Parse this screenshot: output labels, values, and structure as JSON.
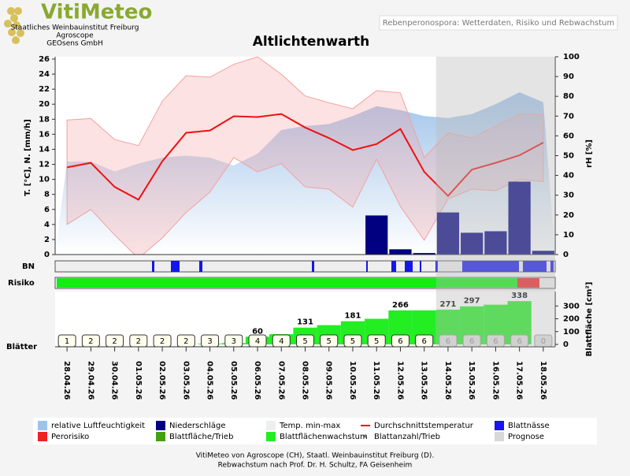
{
  "header": {
    "logo": "VitiMeteo",
    "org": [
      "Staatliches Weinbauinstitut Freiburg",
      "Agroscope",
      "GEOsens GmbH"
    ],
    "subtitle": "Rebenperonospora: Wetterdaten, Risiko und Rebwachstum"
  },
  "chart_data": [
    {
      "type": "weather",
      "title": "Altlichtenwarth",
      "categories": [
        "28.04.26",
        "29.04.26",
        "30.04.26",
        "01.05.26",
        "02.05.26",
        "03.05.26",
        "04.05.26",
        "05.05.26",
        "06.05.26",
        "07.05.26",
        "08.05.26",
        "09.05.26",
        "10.05.26",
        "11.05.26",
        "12.05.26",
        "13.05.26",
        "14.05.26",
        "15.05.26",
        "16.05.26",
        "17.05.26",
        "18.05.26"
      ],
      "forecast_start": "14.05.26",
      "ylabel": "T. [°C], N. [mm/h]",
      "y2label": "rH [%]",
      "ylim": [
        0,
        26
      ],
      "yticks": [
        0,
        2,
        4,
        6,
        8,
        10,
        12,
        14,
        16,
        18,
        20,
        22,
        24,
        26
      ],
      "y2lim": [
        0,
        100
      ],
      "y2ticks": [
        0,
        10,
        20,
        30,
        40,
        50,
        60,
        70,
        80,
        90,
        100
      ],
      "series": [
        {
          "type": "area",
          "axis": "y2",
          "color": "#9cc3ea",
          "values": [
            47,
            47,
            42,
            46,
            49,
            50,
            49,
            45,
            51,
            63,
            65,
            66,
            70,
            75,
            73,
            70,
            69,
            71,
            76,
            82,
            77
          ]
        },
        {
          "type": "band",
          "color": "#f4a0a0",
          "values": [
            17.9,
            18.1,
            15.3,
            14.5,
            20.4,
            23.8,
            23.6,
            25.3,
            26.3,
            24.0,
            21.1,
            20.2,
            19.4,
            21.8,
            21.5,
            12.9,
            16.2,
            15.5,
            17.1,
            18.7,
            18.6
          ],
          "lows": [
            4.0,
            6.0,
            2.6,
            -0.5,
            2.2,
            5.6,
            8.3,
            12.9,
            11.0,
            12.1,
            9.0,
            8.7,
            6.3,
            12.7,
            6.4,
            1.9,
            7.4,
            8.7,
            8.5,
            10.0,
            9.7
          ]
        },
        {
          "type": "bar",
          "color": "#000080",
          "values": [
            0,
            0,
            0,
            0,
            0,
            0,
            0,
            0,
            0,
            0,
            0,
            0,
            0,
            5.2,
            0.7,
            0.2,
            5.6,
            2.9,
            3.1,
            9.7,
            0.5
          ]
        },
        {
          "type": "line",
          "color": "#ee1111",
          "values": [
            11.6,
            12.2,
            9.0,
            7.3,
            12.4,
            16.2,
            16.5,
            18.4,
            18.3,
            18.7,
            16.9,
            15.5,
            13.9,
            14.7,
            16.7,
            11.0,
            7.8,
            11.3,
            12.2,
            13.2,
            14.9
          ]
        }
      ]
    },
    {
      "type": "growth",
      "rows": [
        "BN",
        "Risiko"
      ],
      "ylabel": "Blätter",
      "y2label": "Blattfläche [cm²]",
      "y2lim": [
        0,
        400
      ],
      "y2ticks": [
        0,
        100,
        200,
        300
      ],
      "color": "#22ee22",
      "values": [
        0,
        0,
        0,
        0,
        0,
        0,
        5,
        10,
        60,
        80,
        131,
        150,
        181,
        200,
        266,
        266,
        271,
        297,
        310,
        338,
        0
      ],
      "value_labels": [
        null,
        null,
        null,
        null,
        null,
        null,
        null,
        null,
        "60",
        null,
        "131",
        null,
        "181",
        null,
        "266",
        null,
        "271",
        "297",
        null,
        "338",
        null
      ],
      "leaf_counts": [
        1,
        2,
        2,
        2,
        2,
        2,
        3,
        3,
        4,
        4,
        5,
        5,
        5,
        5,
        6,
        6,
        6,
        6,
        6,
        6,
        0
      ]
    }
  ],
  "legend": [
    {
      "label": "relative Luftfeuchtigkeit",
      "color": "#9cc3ea"
    },
    {
      "label": "Niederschläge",
      "color": "#000080"
    },
    {
      "label": "Temp. min-max",
      "color": "#eeeeee"
    },
    {
      "label": "Durchschnittstemperatur",
      "color": "#ee1111",
      "shape": "line"
    },
    {
      "label": "Blattnässe",
      "color": "#1515ee"
    },
    {
      "label": "Perorisiko",
      "color": "#ee2222"
    },
    {
      "label": "Blattfläche/Trieb",
      "color": "#44a011"
    },
    {
      "label": "Blattflächenwachstum",
      "color": "#22ee22"
    },
    {
      "label": "Blattanzahl/Trieb",
      "color": "#777777",
      "shape": "dot"
    },
    {
      "label": "Prognose",
      "color": "#d8d8d8"
    }
  ],
  "footer": [
    "VitiMeteo von Agroscope (CH), Staatl. Weinbauinstitut Freiburg (D).",
    "Rebwachstum nach Prof. Dr. H. Schultz, FA Geisenheim"
  ]
}
